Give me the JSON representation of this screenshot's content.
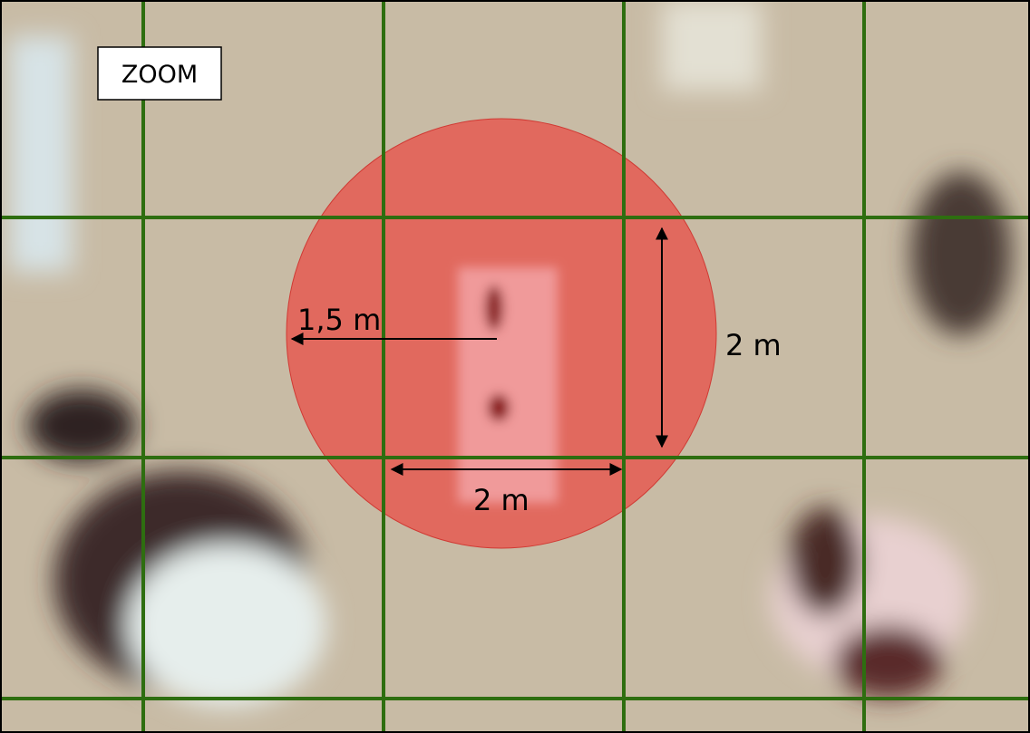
{
  "zoom_label": "ZOOM",
  "annotations": [
    {
      "label": "1,5 m"
    },
    {
      "label": "2 m"
    },
    {
      "label": "2 m"
    }
  ]
}
